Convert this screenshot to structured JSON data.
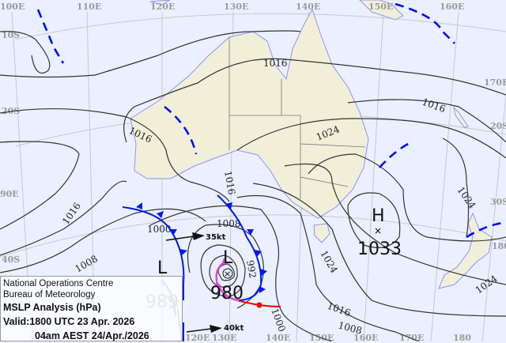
{
  "title_box": {
    "org_line1": "National Operations Centre",
    "org_line2": "Bureau of Meteorology",
    "product": "MSLP Analysis (hPa)",
    "valid_utc": "Valid:1800 UTC 23 Apr. 2026",
    "valid_local": "04am AEST 24/Apr./2026"
  },
  "longitude_labels_top": [
    "100E",
    "110E",
    "120E",
    "130E",
    "140E",
    "150E",
    "160E"
  ],
  "longitude_labels_bottom": [
    "120E",
    "130E",
    "140E",
    "150E",
    "160E",
    "170E",
    "180"
  ],
  "latitude_labels_left": [
    "10S",
    "20S",
    "90E",
    "40S"
  ],
  "latitude_labels_right": [
    "170E",
    "20S",
    "30S",
    "180"
  ],
  "pressure_systems": [
    {
      "type": "L",
      "value": "980",
      "label": "L"
    },
    {
      "type": "L",
      "value": "989",
      "label": "L"
    },
    {
      "type": "H",
      "value": "1033",
      "label": "H"
    }
  ],
  "isobar_labels": [
    "1016",
    "1016",
    "1016",
    "1016",
    "1024",
    "1024",
    "1024",
    "1016",
    "1008",
    "1008",
    "1008",
    "1000",
    "992",
    "1000",
    "1016",
    "1024"
  ],
  "wind_arrows": [
    "35kt",
    "40kt"
  ],
  "colors": {
    "ocean": "#eaf0ff",
    "land": "#f1efd8",
    "coast": "#8f8fff",
    "cold_front": "#0018ee",
    "warm_front": "#ee0000",
    "occluded": "#dd44dd",
    "trough": "#0010ee"
  }
}
